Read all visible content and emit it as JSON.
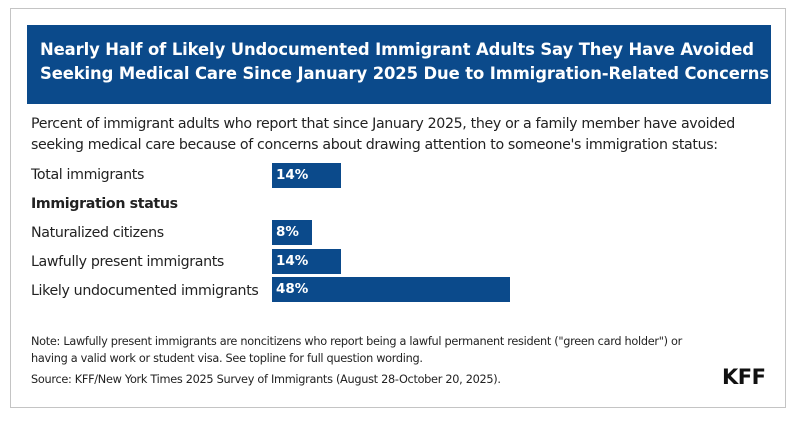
{
  "colors": {
    "accent": "#0b4a8b",
    "text": "#222222",
    "border": "#c4c4c4"
  },
  "header": {
    "title_line1": "Nearly Half of Likely Undocumented Immigrant Adults Say They Have Avoided",
    "title_line2": "Seeking Medical Care Since January 2025 Due to Immigration-Related Concerns"
  },
  "subtitle": {
    "line1": "Percent of immigrant adults who report that since January 2025, they or a family member have avoided",
    "line2": "seeking medical care because of concerns about drawing attention to someone's immigration status:"
  },
  "chart_data": {
    "type": "bar",
    "orientation": "horizontal",
    "title": "Nearly Half of Likely Undocumented Immigrant Adults Say They Have Avoided Seeking Medical Care Since January 2025 Due to Immigration-Related Concerns",
    "subtitle": "Percent of immigrant adults who report that since January 2025, they or a family member have avoided seeking medical care because of concerns about drawing attention to someone's immigration status:",
    "group_heading": "Immigration status",
    "categories": [
      "Total immigrants",
      "Naturalized citizens",
      "Lawfully present immigrants",
      "Likely undocumented immigrants"
    ],
    "values": [
      14,
      8,
      14,
      48
    ],
    "value_labels": [
      "14%",
      "8%",
      "14%",
      "48%"
    ],
    "unit": "%",
    "xlim": [
      0,
      100
    ],
    "grid": false,
    "legend": "none"
  },
  "rows": [
    {
      "label": "Total immigrants",
      "value": 14,
      "value_label": "14%"
    },
    {
      "label": "Immigration status",
      "heading": true
    },
    {
      "label": "Naturalized citizens",
      "value": 8,
      "value_label": "8%"
    },
    {
      "label": "Lawfully present immigrants",
      "value": 14,
      "value_label": "14%"
    },
    {
      "label": "Likely undocumented immigrants",
      "value": 48,
      "value_label": "48%"
    }
  ],
  "footer": {
    "note_line1": "Note: Lawfully present immigrants are noncitizens who report being a lawful permanent resident (\"green card holder\") or",
    "note_line2": "having a valid work or student visa. See topline for full question wording.",
    "source": "Source: KFF/New York Times 2025 Survey of Immigrants (August 28-October 20, 2025).",
    "logo": "KFF"
  }
}
